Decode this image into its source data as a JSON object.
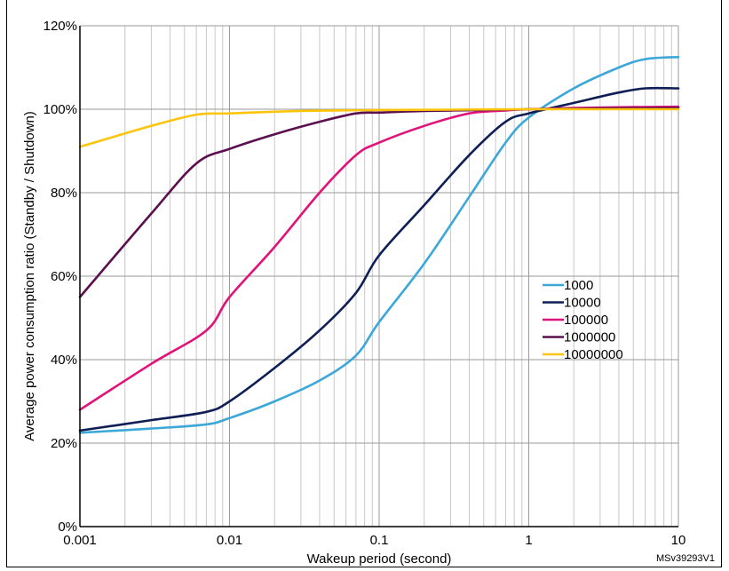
{
  "chart_data": {
    "type": "line",
    "title": "",
    "xlabel": "Wakeup period (second)",
    "ylabel": "Average power consumption ratio (Standby / Shutdown)",
    "x_scale": "log",
    "xlim": [
      0.001,
      10
    ],
    "ylim": [
      0,
      120
    ],
    "x_tick_labels": [
      "0.001",
      "0.01",
      "0.1",
      "1",
      "10"
    ],
    "y_tick_labels": [
      "0%",
      "20%",
      "40%",
      "60%",
      "80%",
      "100%",
      "120%"
    ],
    "y_tick_values": [
      0,
      20,
      40,
      60,
      80,
      100,
      120
    ],
    "x_tick_values": [
      0.001,
      0.01,
      0.1,
      1,
      10
    ],
    "grid": true,
    "legend_position": "right",
    "figure_id": "MSv39293V1",
    "series": [
      {
        "name": "1000",
        "color": "#3ca7d9",
        "x": [
          0.001,
          0.003,
          0.007,
          0.01,
          0.02,
          0.04,
          0.07,
          0.1,
          0.2,
          0.4,
          0.7,
          1,
          2,
          4,
          6,
          10
        ],
        "y": [
          22.5,
          23.5,
          24.5,
          26,
          30,
          35,
          41,
          49,
          63,
          79,
          92,
          98,
          105,
          110,
          112,
          112.5
        ]
      },
      {
        "name": "10000",
        "color": "#0f1f56",
        "x": [
          0.001,
          0.003,
          0.007,
          0.01,
          0.02,
          0.04,
          0.07,
          0.1,
          0.2,
          0.4,
          0.7,
          1,
          2,
          4,
          6,
          10
        ],
        "y": [
          23,
          25.5,
          27.5,
          30,
          38,
          47,
          56,
          65,
          77,
          89,
          97,
          99,
          101.5,
          104,
          105,
          105
        ]
      },
      {
        "name": "100000",
        "color": "#e0137a",
        "x": [
          0.001,
          0.003,
          0.007,
          0.01,
          0.02,
          0.04,
          0.07,
          0.1,
          0.2,
          0.4,
          0.7,
          1,
          2,
          5,
          10
        ],
        "y": [
          28,
          39,
          47,
          55,
          67,
          80,
          89,
          92,
          96,
          99,
          99.7,
          100,
          100.3,
          100.5,
          100.6
        ]
      },
      {
        "name": "1000000",
        "color": "#5b0f4f",
        "x": [
          0.001,
          0.003,
          0.006,
          0.01,
          0.02,
          0.04,
          0.07,
          0.1,
          0.2,
          0.5,
          1,
          3,
          10
        ],
        "y": [
          55,
          75,
          87,
          90.5,
          94,
          97,
          99,
          99.2,
          99.6,
          99.8,
          100,
          100.2,
          100.3
        ]
      },
      {
        "name": "10000000",
        "color": "#fcc40a",
        "x": [
          0.001,
          0.003,
          0.006,
          0.01,
          0.03,
          0.1,
          0.3,
          1,
          3,
          10
        ],
        "y": [
          91,
          96,
          98.7,
          99,
          99.6,
          99.8,
          99.9,
          100,
          100,
          100
        ]
      }
    ]
  }
}
